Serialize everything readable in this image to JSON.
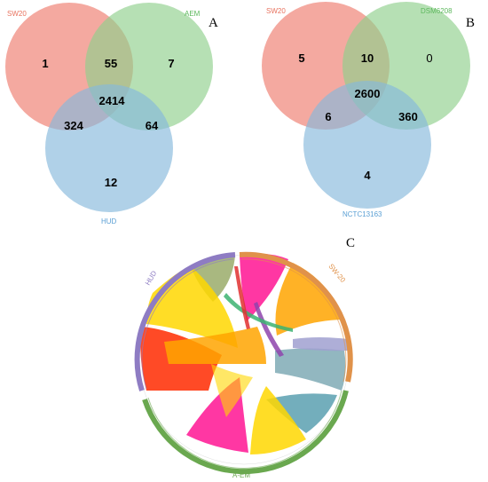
{
  "panels": [
    "A",
    "B",
    "C"
  ],
  "venn_a": {
    "set_labels": [
      "SW20",
      "AEM",
      "HUD"
    ],
    "colors": [
      "#f08c80",
      "#8fd08c",
      "#86b9dc"
    ],
    "label_colors": [
      "#e8735f",
      "#5cb85c",
      "#5a9fd4"
    ],
    "counts": {
      "only_1": "1",
      "pair_12": "55",
      "only_2": "7",
      "all": "2414",
      "pair_13": "324",
      "pair_23": "64",
      "only_3": "12"
    }
  },
  "venn_b": {
    "set_labels": [
      "SW20",
      "DSM6208",
      "NCTC13163"
    ],
    "colors": [
      "#f08c80",
      "#8fd08c",
      "#86b9dc"
    ],
    "label_colors": [
      "#e8735f",
      "#5cb85c",
      "#5a9fd4"
    ],
    "counts": {
      "only_1": "5",
      "pair_12": "10",
      "only_2": "0",
      "all": "2600",
      "pair_13": "6",
      "pair_23": "360",
      "only_3": "4"
    }
  },
  "chord": {
    "segments": [
      {
        "label": "SW-20",
        "color": "#e0924a"
      },
      {
        "label": "A-EM",
        "color": "#6aa84f"
      },
      {
        "label": "HUD",
        "color": "#8e7cc3"
      }
    ],
    "ribbon_colors": [
      "#ff1493",
      "#ffa500",
      "#ffd700",
      "#ff2a00",
      "#7faab5",
      "#9aab6a",
      "#a0a0d0"
    ]
  }
}
